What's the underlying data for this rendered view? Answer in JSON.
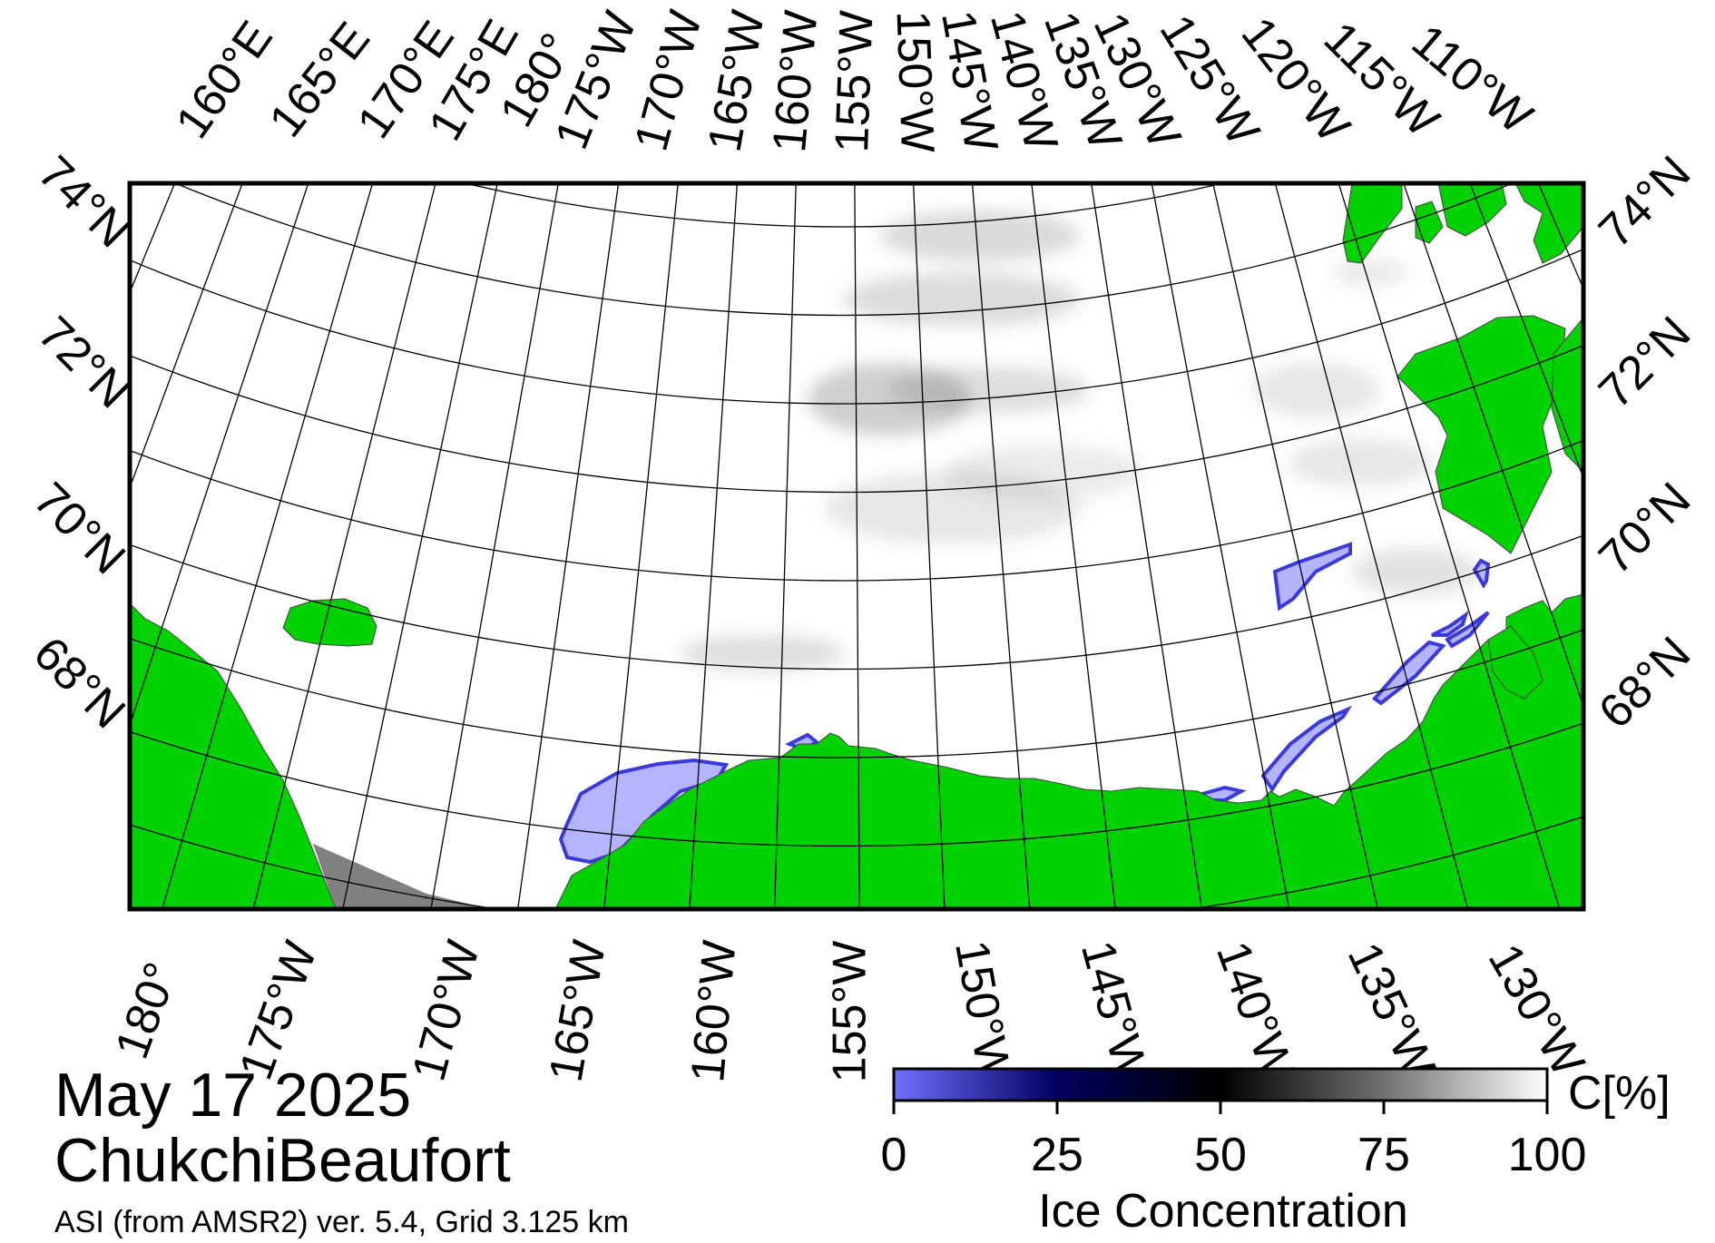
{
  "title": {
    "date": "May 17 2025",
    "region": "ChukchiBeaufort",
    "source": "ASI (from AMSR2) ver. 5.4,  Grid 3.125 km"
  },
  "map": {
    "lat_labels_left": [
      "74°N",
      "72°N",
      "70°N",
      "68°N"
    ],
    "lat_labels_right": [
      "74°N",
      "72°N",
      "70°N",
      "68°N"
    ],
    "lon_labels_top": [
      "160°E",
      "165°E",
      "170°E",
      "175°E",
      "180°",
      "175°W",
      "170°W",
      "165°W",
      "160°W",
      "155°W",
      "150°W",
      "145°W",
      "140°W",
      "135°W",
      "130°W",
      "125°W",
      "120°W",
      "115°W",
      "110°W"
    ],
    "lon_labels_bottom": [
      "180°",
      "175°W",
      "170°W",
      "165°W",
      "160°W",
      "155°W",
      "150°W",
      "145°W",
      "140°W",
      "135°W",
      "130°W"
    ],
    "colors": {
      "land": "#00d200",
      "missing": "#808080",
      "open_water": "#b4b4ff",
      "ice": "#ffffff",
      "grid": "#000000"
    }
  },
  "colorbar": {
    "label": "Ice Concentration",
    "unit": "C[%]",
    "ticks": [
      "0",
      "25",
      "50",
      "75",
      "100"
    ],
    "tick_values": [
      0,
      25,
      50,
      75,
      100
    ],
    "range": [
      0,
      100
    ],
    "colors": {
      "low": "#7070ff",
      "mid_low": "#000060",
      "mid": "#000000",
      "high": "#ffffff"
    }
  }
}
